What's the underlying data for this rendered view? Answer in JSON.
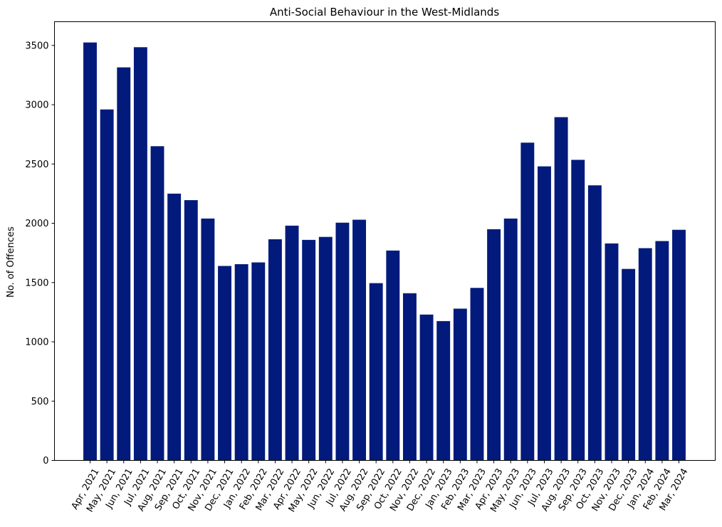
{
  "chart_data": {
    "type": "bar",
    "title": "Anti-Social Behaviour in the West-Midlands",
    "xlabel": "",
    "ylabel": "No. of Offences",
    "ylim": [
      0,
      3700
    ],
    "yticks": [
      0,
      500,
      1000,
      1500,
      2000,
      2500,
      3000,
      3500
    ],
    "grid": false,
    "bar_color": "#021a7b",
    "categories": [
      "Apr, 2021",
      "May, 2021",
      "Jun, 2021",
      "Jul, 2021",
      "Aug, 2021",
      "Sep, 2021",
      "Oct, 2021",
      "Nov, 2021",
      "Dec, 2021",
      "Jan, 2022",
      "Feb, 2022",
      "Mar, 2022",
      "Apr, 2022",
      "May, 2022",
      "Jun, 2022",
      "Jul, 2022",
      "Aug, 2022",
      "Sep, 2022",
      "Oct, 2022",
      "Nov, 2022",
      "Dec, 2022",
      "Jan, 2023",
      "Feb, 2023",
      "Mar, 2023",
      "Apr, 2023",
      "May, 2023",
      "Jun, 2023",
      "Jul, 2023",
      "Aug, 2023",
      "Sep, 2023",
      "Oct, 2023",
      "Nov, 2023",
      "Dec, 2023",
      "Jan, 2024",
      "Feb, 2024",
      "Mar, 2024"
    ],
    "values": [
      3525,
      2960,
      3315,
      3485,
      2650,
      2250,
      2195,
      2040,
      1640,
      1655,
      1670,
      1865,
      1980,
      1860,
      1885,
      2005,
      2030,
      1495,
      1770,
      1410,
      1230,
      1175,
      1280,
      1455,
      1950,
      2040,
      2680,
      2480,
      2895,
      2535,
      2320,
      1830,
      1615,
      1790,
      1850,
      1945
    ]
  }
}
